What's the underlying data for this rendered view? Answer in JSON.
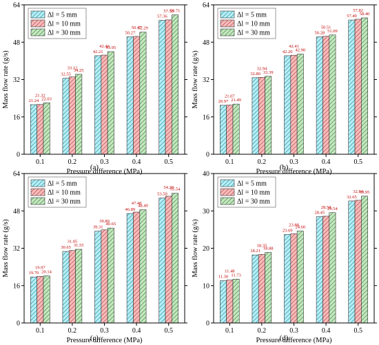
{
  "colors": {
    "series": [
      "#b9eef3",
      "#f6bcbc",
      "#c5e7c2"
    ],
    "hatch": [
      "#3aa5bb",
      "#c55a5a",
      "#5a9a55"
    ],
    "data_label": "#c00000",
    "axis": "#000000"
  },
  "chart_data": [
    {
      "type": "bar",
      "panel_label": "(a)",
      "xlabel": "Pressure difference (MPa)",
      "ylabel": "Mass flow rate (g/s)",
      "categories": [
        "0.1",
        "0.2",
        "0.3",
        "0.4",
        "0.5"
      ],
      "ylim": [
        0,
        64
      ],
      "yticks": [
        "0",
        "16",
        "32",
        "48",
        "64"
      ],
      "legend_position": "top-left",
      "series": [
        {
          "name": "Δl = 5 mm",
          "values": [
            21.24,
            32.55,
            42.21,
            50.27,
            57.36
          ],
          "labels": [
            "21.24",
            "32.55",
            "42.21",
            "50.27",
            "57.36"
          ]
        },
        {
          "name": "Δl = 10 mm",
          "values": [
            21.32,
            33.12,
            42.46,
            50.47,
            57.56
          ],
          "labels": [
            "21.32",
            "33.12",
            "42.46",
            "50.47",
            "57.56"
          ]
        },
        {
          "name": "Δl = 30 mm",
          "values": [
            22.03,
            34.25,
            43.95,
            52.29,
            59.71
          ],
          "labels": [
            "22.03",
            "34.25",
            "43.95",
            "52.29",
            "59.71"
          ]
        }
      ]
    },
    {
      "type": "bar",
      "panel_label": "(b)",
      "xlabel": "Pressure difference (MPa)",
      "ylabel": "Mass flow rate (g/s)",
      "categories": [
        "0.1",
        "0.2",
        "0.3",
        "0.4",
        "0.5"
      ],
      "ylim": [
        0,
        64
      ],
      "yticks": [
        "0",
        "16",
        "32",
        "48",
        "64"
      ],
      "legend_position": "top-left",
      "series": [
        {
          "name": "Δl = 5 mm",
          "values": [
            20.97,
            32.8,
            42.2,
            50.28,
            57.49
          ],
          "labels": [
            "20.97",
            "32.80",
            "42.20",
            "50.28",
            "57.49"
          ]
        },
        {
          "name": "Δl = 10 mm",
          "values": [
            21.07,
            32.94,
            42.41,
            50.51,
            57.82
          ],
          "labels": [
            "21.07",
            "32.94",
            "42.41",
            "50.51",
            "57.82"
          ]
        },
        {
          "name": "Δl = 30 mm",
          "values": [
            21.49,
            33.39,
            42.9,
            51.09,
            58.4
          ],
          "labels": [
            "21.49",
            "33.39",
            "42.90",
            "51.09",
            "58.40"
          ]
        }
      ]
    },
    {
      "type": "bar",
      "panel_label": "(c)",
      "xlabel": "Pressure difference (MPa)",
      "ylabel": "Mass flow rate (g/s)",
      "categories": [
        "0.1",
        "0.2",
        "0.3",
        "0.4",
        "0.5"
      ],
      "ylim": [
        0,
        64
      ],
      "yticks": [
        "0",
        "16",
        "32",
        "48",
        "64"
      ],
      "legend_position": "top-left",
      "series": [
        {
          "name": "Δl = 5 mm",
          "values": [
            19.7,
            30.65,
            39.31,
            46.89,
            53.5
          ],
          "labels": [
            "19.70",
            "30.65",
            "39.31",
            "46.89",
            "53.50"
          ]
        },
        {
          "name": "Δl = 10 mm",
          "values": [
            19.97,
            31.05,
            39.89,
            47.48,
            54.28
          ],
          "labels": [
            "19.97",
            "31.05",
            "39.89",
            "47.48",
            "54.28"
          ]
        },
        {
          "name": "Δl = 30 mm",
          "values": [
            20.14,
            31.55,
            40.65,
            48.49,
            55.54
          ],
          "labels": [
            "20.14",
            "31.55",
            "40.65",
            "48.49",
            "55.54"
          ]
        }
      ]
    },
    {
      "type": "bar",
      "panel_label": "(d)",
      "xlabel": "Pressure difference (MPa)",
      "ylabel": "Mass flow rate (g/s)",
      "categories": [
        "0.1",
        "0.2",
        "0.3",
        "0.4",
        "0.5"
      ],
      "ylim": [
        0,
        40
      ],
      "yticks": [
        "0",
        "10",
        "20",
        "30",
        "40"
      ],
      "legend_position": "top-left",
      "series": [
        {
          "name": "Δl = 5 mm",
          "values": [
            11.3,
            18.21,
            23.69,
            28.45,
            32.65
          ],
          "labels": [
            "11.30",
            "18.21",
            "23.69",
            "28.45",
            "32.65"
          ]
        },
        {
          "name": "Δl = 10 mm",
          "values": [
            11.48,
            18.35,
            23.88,
            28.58,
            32.84
          ],
          "labels": [
            "11.48",
            "18.35",
            "23.88",
            "28.58",
            "32.84"
          ]
        },
        {
          "name": "Δl = 30 mm",
          "values": [
            11.73,
            18.88,
            24.6,
            29.54,
            33.95
          ],
          "labels": [
            "11.73",
            "18.88",
            "24.60",
            "29.54",
            "33.95"
          ]
        }
      ]
    }
  ]
}
